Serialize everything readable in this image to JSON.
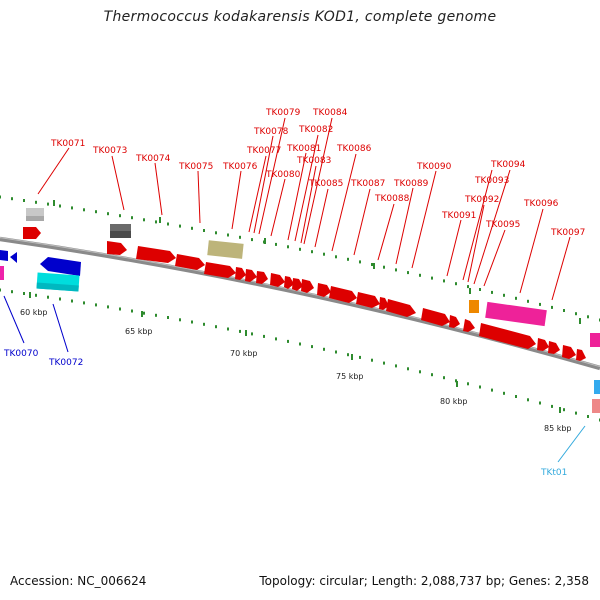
{
  "title": "Thermococcus kodakarensis KOD1, complete genome",
  "footer": {
    "accession": "Accession: NC_006624",
    "info": "Topology: circular; Length: 2,088,737 bp; Genes: 2,358"
  },
  "scale_labels": [
    "60 kbp",
    "65 kbp",
    "70 kbp",
    "75 kbp",
    "80 kbp",
    "85 kbp"
  ],
  "colors": {
    "forward_label": "#dd0000",
    "reverse_label": "#0000cc",
    "trna_label": "#33aadd",
    "backbone": "#8a8a8a",
    "tick": "#2e8b2e"
  },
  "forward_gene_labels": [
    "TK0071",
    "TK0073",
    "TK0074",
    "TK0075",
    "TK0076",
    "TK0077",
    "TK0078",
    "TK0079",
    "TK0080",
    "TK0081",
    "TK0082",
    "TK0083",
    "TK0084",
    "TK0085",
    "TK0086",
    "TK0087",
    "TK0088",
    "TK0089",
    "TK0090",
    "TK0091",
    "TK0092",
    "TK0093",
    "TK0094",
    "TK0095",
    "TK0096",
    "TK0097"
  ],
  "reverse_gene_labels": [
    "TK0070",
    "TK0072"
  ],
  "trna_labels": [
    "TKt01"
  ]
}
